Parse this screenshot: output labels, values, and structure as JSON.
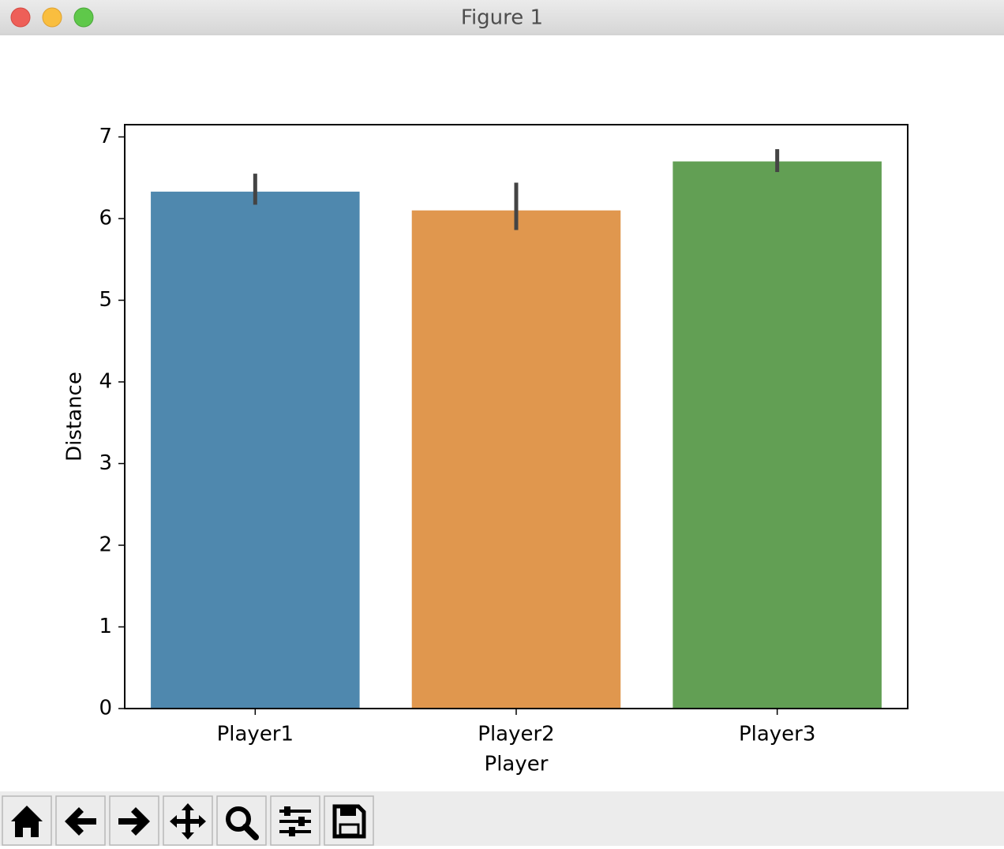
{
  "window": {
    "title": "Figure 1"
  },
  "chart_data": {
    "type": "bar",
    "x_label": "Player",
    "y_label": "Distance",
    "categories": [
      "Player1",
      "Player2",
      "Player3"
    ],
    "values": [
      6.33,
      6.1,
      6.7
    ],
    "ci_low": [
      6.17,
      5.86,
      6.57
    ],
    "ci_high": [
      6.55,
      6.44,
      6.85
    ],
    "colors": [
      "#4f88ae",
      "#e0974e",
      "#629f54"
    ],
    "error_color": "#444444",
    "ylim": [
      0,
      7.15
    ],
    "yticks": [
      0,
      1,
      2,
      3,
      4,
      5,
      6,
      7
    ],
    "grid": false
  }
}
